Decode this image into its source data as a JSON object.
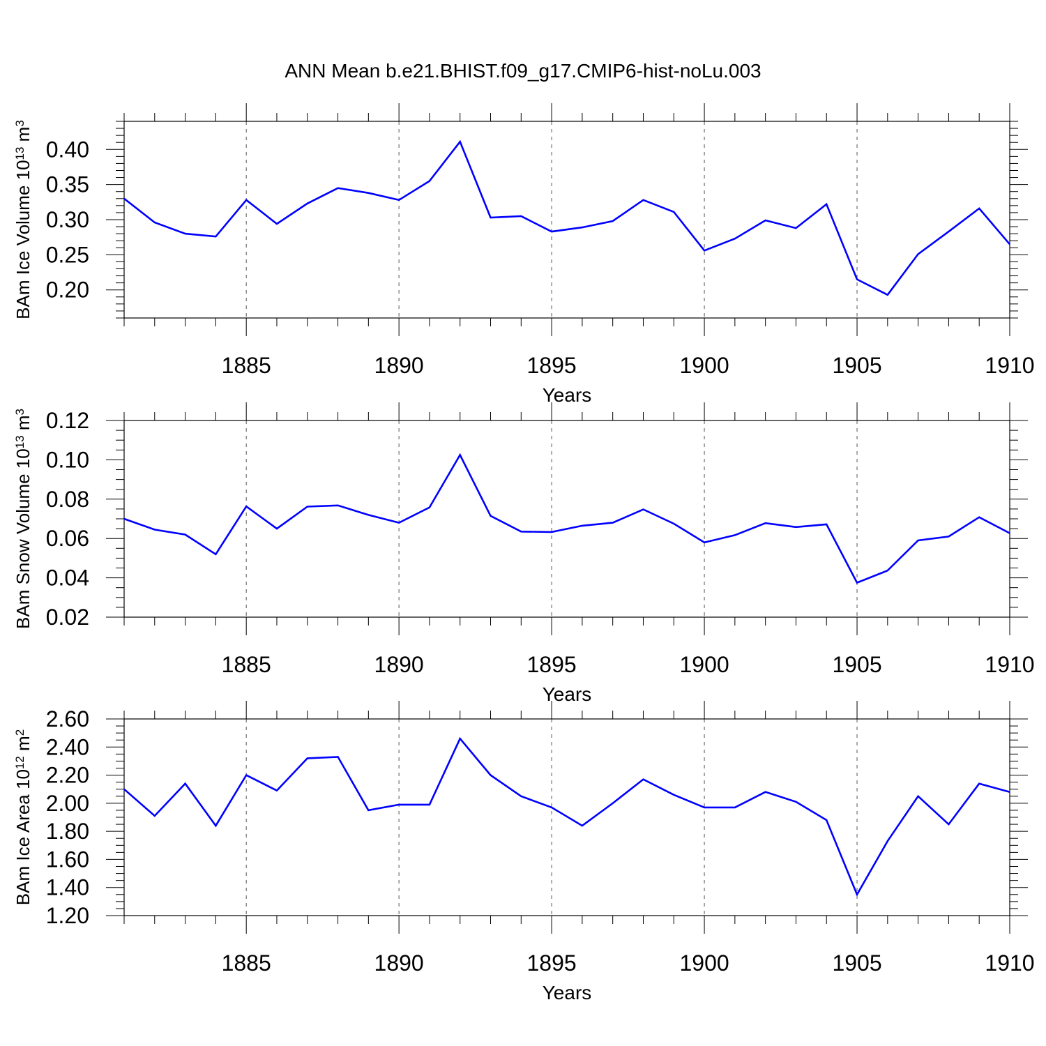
{
  "title": "ANN Mean b.e21.BHIST.f09_g17.CMIP6-hist-noLu.003",
  "line_color": "#0000ff",
  "chart_data": [
    {
      "type": "line",
      "xlabel": "Years",
      "ylabel": {
        "main": "BAm Ice Volume 10",
        "exp": "13",
        "unit": " m",
        "unit_exp": "3"
      },
      "xlim": [
        1881,
        1910
      ],
      "ylim": [
        0.16,
        0.44
      ],
      "xticks": [
        1885,
        1890,
        1895,
        1900,
        1905,
        1910
      ],
      "yticks": [
        "0.20",
        "0.25",
        "0.30",
        "0.35",
        "0.40"
      ],
      "yminor": 0.01,
      "x": [
        1881,
        1882,
        1883,
        1884,
        1885,
        1886,
        1887,
        1888,
        1889,
        1890,
        1891,
        1892,
        1893,
        1894,
        1895,
        1896,
        1897,
        1898,
        1899,
        1900,
        1901,
        1902,
        1903,
        1904,
        1905,
        1906,
        1907,
        1908,
        1909,
        1910
      ],
      "series": [
        {
          "values": [
            0.33,
            0.296,
            0.28,
            0.276,
            0.328,
            0.294,
            0.323,
            0.345,
            0.338,
            0.328,
            0.355,
            0.411,
            0.303,
            0.305,
            0.283,
            0.289,
            0.298,
            0.328,
            0.311,
            0.256,
            0.273,
            0.299,
            0.288,
            0.322,
            0.215,
            0.193,
            0.251,
            0.283,
            0.316,
            0.265
          ]
        }
      ]
    },
    {
      "type": "line",
      "xlabel": "Years",
      "ylabel": {
        "main": "BAm Snow Volume 10",
        "exp": "13",
        "unit": " m",
        "unit_exp": "3"
      },
      "xlim": [
        1881,
        1910
      ],
      "ylim": [
        0.02,
        0.12
      ],
      "xticks": [
        1885,
        1890,
        1895,
        1900,
        1905,
        1910
      ],
      "yticks": [
        "0.02",
        "0.04",
        "0.06",
        "0.08",
        "0.10",
        "0.12"
      ],
      "yminor": 0.005,
      "x": [
        1881,
        1882,
        1883,
        1884,
        1885,
        1886,
        1887,
        1888,
        1889,
        1890,
        1891,
        1892,
        1893,
        1894,
        1895,
        1896,
        1897,
        1898,
        1899,
        1900,
        1901,
        1902,
        1903,
        1904,
        1905,
        1906,
        1907,
        1908,
        1909,
        1910
      ],
      "series": [
        {
          "values": [
            0.07,
            0.0645,
            0.062,
            0.052,
            0.0763,
            0.065,
            0.0762,
            0.0768,
            0.072,
            0.068,
            0.0758,
            0.1025,
            0.0715,
            0.0635,
            0.0633,
            0.0665,
            0.068,
            0.0748,
            0.0675,
            0.058,
            0.0617,
            0.0678,
            0.0658,
            0.0672,
            0.0375,
            0.0437,
            0.059,
            0.061,
            0.0708,
            0.0627
          ]
        }
      ]
    },
    {
      "type": "line",
      "xlabel": "Years",
      "ylabel": {
        "main": "BAm Ice Area 10",
        "exp": "12",
        "unit": " m",
        "unit_exp": "2"
      },
      "xlim": [
        1881,
        1910
      ],
      "ylim": [
        1.2,
        2.6
      ],
      "xticks": [
        1885,
        1890,
        1895,
        1900,
        1905,
        1910
      ],
      "yticks": [
        "1.20",
        "1.40",
        "1.60",
        "1.80",
        "2.00",
        "2.20",
        "2.40",
        "2.60"
      ],
      "yminor": 0.05,
      "x": [
        1881,
        1882,
        1883,
        1884,
        1885,
        1886,
        1887,
        1888,
        1889,
        1890,
        1891,
        1892,
        1893,
        1894,
        1895,
        1896,
        1897,
        1898,
        1899,
        1900,
        1901,
        1902,
        1903,
        1904,
        1905,
        1906,
        1907,
        1908,
        1909,
        1910
      ],
      "series": [
        {
          "values": [
            2.1,
            1.91,
            2.14,
            1.84,
            2.2,
            2.09,
            2.32,
            2.33,
            1.95,
            1.99,
            1.99,
            2.46,
            2.2,
            2.05,
            1.97,
            1.84,
            2.0,
            2.17,
            2.06,
            1.97,
            1.97,
            2.08,
            2.01,
            1.88,
            1.35,
            1.73,
            2.05,
            1.85,
            2.14,
            2.08
          ]
        }
      ]
    }
  ]
}
